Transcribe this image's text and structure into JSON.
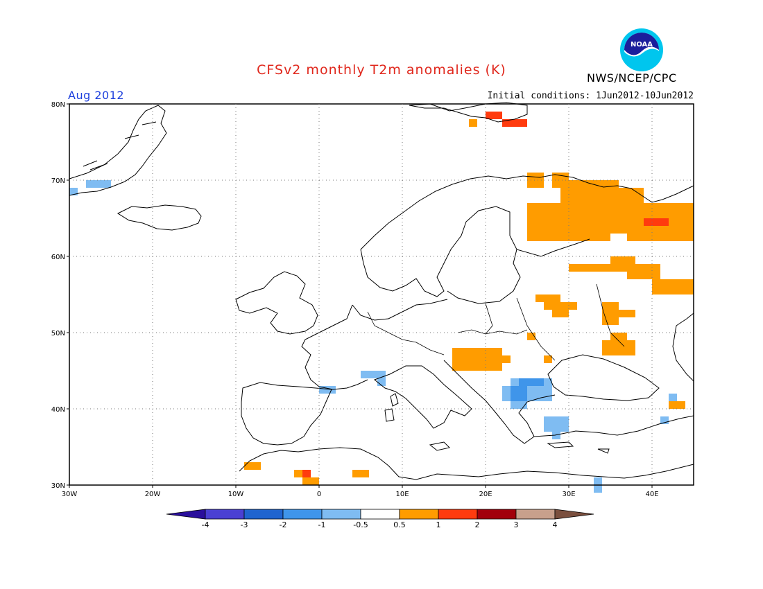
{
  "header": {
    "title": "CFSv2 monthly T2m anomalies (K)",
    "agency": "NWS/NCEP/CPC",
    "month": "Aug 2012",
    "initial_conditions": "Initial conditions: 1Jun2012-10Jun2012",
    "logo_text": "NOAA"
  },
  "map": {
    "lon_range": [
      -30,
      45
    ],
    "lat_range": [
      30,
      80
    ],
    "lon_ticks": [
      {
        "value": -30,
        "label": "30W"
      },
      {
        "value": -20,
        "label": "20W"
      },
      {
        "value": -10,
        "label": "10W"
      },
      {
        "value": 0,
        "label": "0"
      },
      {
        "value": 10,
        "label": "10E"
      },
      {
        "value": 20,
        "label": "20E"
      },
      {
        "value": 30,
        "label": "30E"
      },
      {
        "value": 40,
        "label": "40E"
      }
    ],
    "lat_ticks": [
      {
        "value": 80,
        "label": "80N"
      },
      {
        "value": 70,
        "label": "70N"
      },
      {
        "value": 60,
        "label": "60N"
      },
      {
        "value": 50,
        "label": "50N"
      },
      {
        "value": 40,
        "label": "40N"
      },
      {
        "value": 30,
        "label": "30N"
      }
    ],
    "grid": true,
    "anomaly_patches": [
      {
        "lon": [
          25,
          27
        ],
        "lat": [
          69,
          71
        ],
        "level": "0.5-1"
      },
      {
        "lon": [
          28,
          30
        ],
        "lat": [
          69,
          71
        ],
        "level": "0.5-1"
      },
      {
        "lon": [
          29,
          36
        ],
        "lat": [
          66,
          70
        ],
        "level": "0.5-1"
      },
      {
        "lon": [
          25,
          31
        ],
        "lat": [
          62,
          67
        ],
        "level": "0.5-1"
      },
      {
        "lon": [
          31,
          35
        ],
        "lat": [
          62,
          68
        ],
        "level": "0.5-1"
      },
      {
        "lon": [
          34,
          39
        ],
        "lat": [
          63,
          69
        ],
        "level": "0.5-1"
      },
      {
        "lon": [
          37,
          45
        ],
        "lat": [
          62,
          67
        ],
        "level": "0.5-1"
      },
      {
        "lon": [
          39,
          41
        ],
        "lat": [
          64,
          65
        ],
        "level": "1-2"
      },
      {
        "lon": [
          41,
          42
        ],
        "lat": [
          64,
          65
        ],
        "level": "1-2"
      },
      {
        "lon": [
          35,
          38
        ],
        "lat": [
          58,
          60
        ],
        "level": "0.5-1"
      },
      {
        "lon": [
          30,
          35
        ],
        "lat": [
          58,
          59
        ],
        "level": "0.5-1"
      },
      {
        "lon": [
          37,
          41
        ],
        "lat": [
          57,
          59
        ],
        "level": "0.5-1"
      },
      {
        "lon": [
          40,
          45
        ],
        "lat": [
          55,
          57
        ],
        "level": "0.5-1"
      },
      {
        "lon": [
          26,
          29
        ],
        "lat": [
          54,
          55
        ],
        "level": "0.5-1"
      },
      {
        "lon": [
          27,
          31
        ],
        "lat": [
          53,
          54
        ],
        "level": "0.5-1"
      },
      {
        "lon": [
          28,
          30
        ],
        "lat": [
          52,
          53
        ],
        "level": "0.5-1"
      },
      {
        "lon": [
          34,
          36
        ],
        "lat": [
          51,
          54
        ],
        "level": "0.5-1"
      },
      {
        "lon": [
          36,
          38
        ],
        "lat": [
          52,
          53
        ],
        "level": "0.5-1"
      },
      {
        "lon": [
          34,
          38
        ],
        "lat": [
          47,
          49
        ],
        "level": "0.5-1"
      },
      {
        "lon": [
          35,
          37
        ],
        "lat": [
          49,
          50
        ],
        "level": "0.5-1"
      },
      {
        "lon": [
          25,
          26
        ],
        "lat": [
          49,
          50
        ],
        "level": "0.5-1"
      },
      {
        "lon": [
          16,
          22
        ],
        "lat": [
          45,
          48
        ],
        "level": "0.5-1"
      },
      {
        "lon": [
          22,
          23
        ],
        "lat": [
          46,
          47
        ],
        "level": "0.5-1"
      },
      {
        "lon": [
          27,
          28
        ],
        "lat": [
          46,
          47
        ],
        "level": "0.5-1"
      },
      {
        "lon": [
          42,
          44
        ],
        "lat": [
          40,
          41
        ],
        "level": "0.5-1"
      },
      {
        "lon": [
          20,
          22
        ],
        "lat": [
          78,
          79
        ],
        "level": "1-2"
      },
      {
        "lon": [
          22,
          25
        ],
        "lat": [
          77,
          78
        ],
        "level": "1-2"
      },
      {
        "lon": [
          18,
          19
        ],
        "lat": [
          77,
          78
        ],
        "level": "0.5-1"
      },
      {
        "lon": [
          -9,
          -7
        ],
        "lat": [
          32,
          33
        ],
        "level": "0.5-1"
      },
      {
        "lon": [
          -3,
          -2
        ],
        "lat": [
          31,
          32
        ],
        "level": "0.5-1"
      },
      {
        "lon": [
          -2,
          -1
        ],
        "lat": [
          31,
          32
        ],
        "level": "1-2"
      },
      {
        "lon": [
          -2,
          0
        ],
        "lat": [
          30,
          31
        ],
        "level": "0.5-1"
      },
      {
        "lon": [
          4,
          6
        ],
        "lat": [
          31,
          32
        ],
        "level": "0.5-1"
      },
      {
        "lon": [
          -30,
          -29
        ],
        "lat": [
          68,
          69
        ],
        "level": "-1--0.5"
      },
      {
        "lon": [
          -28,
          -25
        ],
        "lat": [
          69,
          70
        ],
        "level": "-1--0.5"
      },
      {
        "lon": [
          0,
          2
        ],
        "lat": [
          42,
          43
        ],
        "level": "-1--0.5"
      },
      {
        "lon": [
          5,
          8
        ],
        "lat": [
          44,
          45
        ],
        "level": "-1--0.5"
      },
      {
        "lon": [
          7,
          8
        ],
        "lat": [
          43,
          44
        ],
        "level": "-1--0.5"
      },
      {
        "lon": [
          23,
          28
        ],
        "lat": [
          42,
          44
        ],
        "level": "-1--0.5"
      },
      {
        "lon": [
          22,
          28
        ],
        "lat": [
          41,
          43
        ],
        "level": "-1--0.5"
      },
      {
        "lon": [
          23,
          25
        ],
        "lat": [
          40,
          41
        ],
        "level": "-1--0.5"
      },
      {
        "lon": [
          24,
          27
        ],
        "lat": [
          43,
          44
        ],
        "level": "-2--1"
      },
      {
        "lon": [
          23,
          25
        ],
        "lat": [
          41,
          43
        ],
        "level": "-2--1"
      },
      {
        "lon": [
          27,
          30
        ],
        "lat": [
          37,
          39
        ],
        "level": "-1--0.5"
      },
      {
        "lon": [
          28,
          29
        ],
        "lat": [
          36,
          37
        ],
        "level": "-1--0.5"
      },
      {
        "lon": [
          42,
          43
        ],
        "lat": [
          41,
          42
        ],
        "level": "-1--0.5"
      },
      {
        "lon": [
          41,
          42
        ],
        "lat": [
          38,
          39
        ],
        "level": "-1--0.5"
      },
      {
        "lon": [
          33,
          34
        ],
        "lat": [
          29,
          31
        ],
        "level": "-1--0.5"
      }
    ]
  },
  "colorbar": {
    "colors": [
      "#2a0f9c",
      "#4a40d3",
      "#1f64cf",
      "#3f95ea",
      "#7fbcf2",
      "#ffffff",
      "#ff9c00",
      "#ff3b0e",
      "#a2000b",
      "#c8a08c",
      "#7a4f3e"
    ],
    "level_colors": {
      "-4--3": "#4a40d3",
      "-3--2": "#1f64cf",
      "-2--1": "#3f95ea",
      "-1--0.5": "#7fbcf2",
      "0.5-1": "#ff9c00",
      "1-2": "#ff3b0e",
      "2-3": "#a2000b",
      "3-4": "#c8a08c"
    },
    "tick_labels": [
      "-4",
      "-3",
      "-2",
      "-1",
      "-0.5",
      "0.5",
      "1",
      "2",
      "3",
      "4"
    ]
  }
}
